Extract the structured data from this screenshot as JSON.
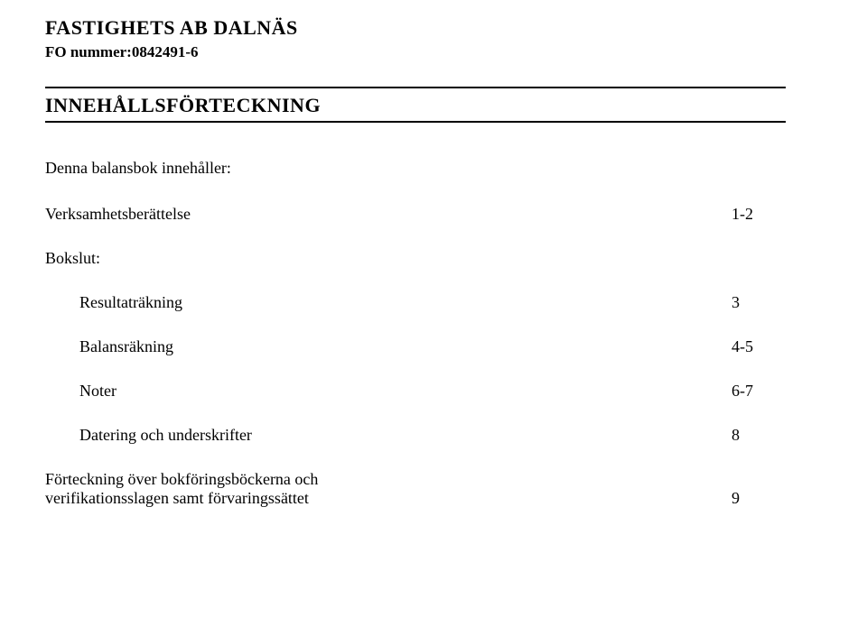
{
  "header": {
    "company_name": "FASTIGHETS AB DALNÄS",
    "fo_label": "FO nummer:0842491-6",
    "section_title": "INNEHÅLLSFÖRTECKNING"
  },
  "intro_text": "Denna balansbok innehåller:",
  "toc": {
    "verksamhet": {
      "label": "Verksamhetsberättelse",
      "pages": "1-2"
    },
    "bokslut_label": "Bokslut:",
    "resultat": {
      "label": "Resultaträkning",
      "pages": "3"
    },
    "balans": {
      "label": "Balansräkning",
      "pages": "4-5"
    },
    "noter": {
      "label": "Noter",
      "pages": "6-7"
    },
    "datering": {
      "label": "Datering och underskrifter",
      "pages": "8"
    },
    "forteckning": {
      "line1": "Förteckning över bokföringsböckerna och",
      "line2": "verifikationsslagen samt förvaringssättet",
      "pages": "9"
    }
  }
}
